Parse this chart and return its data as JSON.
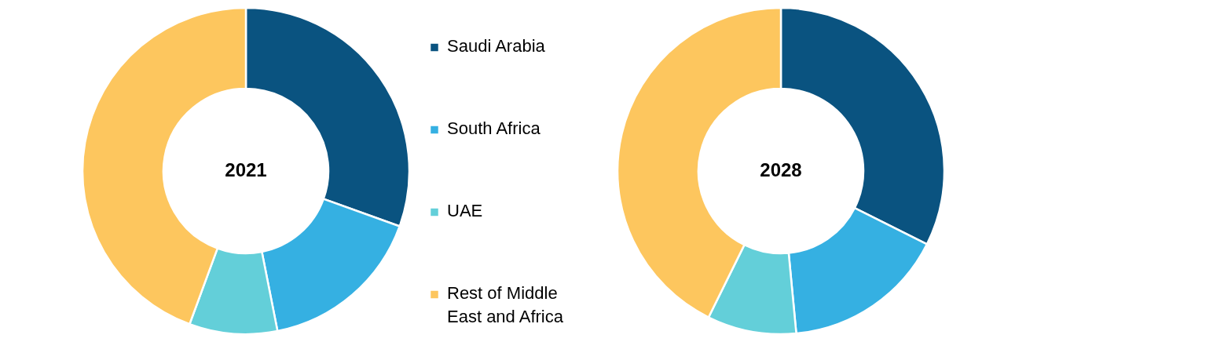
{
  "chart_data": {
    "type": "donut",
    "categories": [
      "Saudi Arabia",
      "South Africa",
      "UAE",
      "Rest of Middle East and Africa"
    ],
    "colors": [
      "#0a5380",
      "#35b0e2",
      "#63cfd9",
      "#fdc65e"
    ],
    "legend": "right",
    "series": [
      {
        "name": "2021",
        "values": [
          30.5,
          16.4,
          8.7,
          44.4
        ]
      },
      {
        "name": "2028",
        "values": [
          32.4,
          16.1,
          8.8,
          42.7
        ]
      }
    ]
  }
}
